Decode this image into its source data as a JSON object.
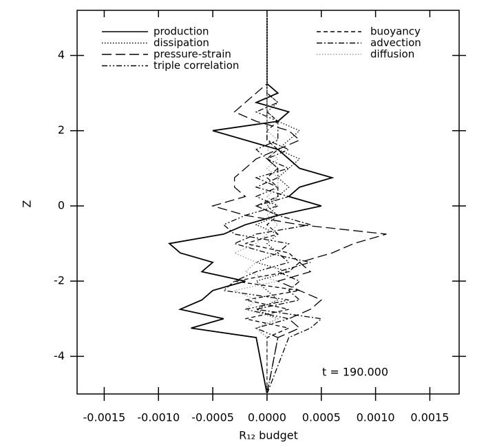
{
  "chart_data": {
    "type": "line",
    "x_label": "R₁₂ budget",
    "y_label": "Z",
    "annotation": "t = 190.000",
    "xlim": [
      -0.00175,
      0.00177
    ],
    "ylim": [
      -5,
      5.2
    ],
    "xticks": [
      -0.0015,
      {
        "value": -0.001,
        "label": "-0.0010"
      },
      -0.0005,
      {
        "value": 0,
        "label": "0.0000"
      },
      0.0005,
      {
        "value": 0.001,
        "label": "0.0010"
      },
      0.0015
    ],
    "yticks": [
      -4,
      -2,
      0,
      2,
      4
    ],
    "y": [
      -5,
      -3.5,
      -3.25,
      -3.0,
      -2.75,
      -2.5,
      -2.25,
      -2.0,
      -1.75,
      -1.5,
      -1.25,
      -1.0,
      -0.75,
      -0.5,
      -0.25,
      0,
      0.25,
      0.5,
      0.75,
      1.0,
      1.25,
      1.5,
      1.75,
      2.0,
      2.25,
      2.5,
      2.75,
      3.0,
      3.25,
      5
    ],
    "series": [
      {
        "name": "production",
        "color": "#000000",
        "style": "solid",
        "values": [
          0,
          -0.0001,
          -0.0007,
          -0.0004,
          -0.0008,
          -0.0006,
          -0.0005,
          -0.0002,
          -0.0006,
          -0.0005,
          -0.0008,
          -0.0009,
          -0.0004,
          -0.0002,
          0.0001,
          0.0005,
          0.0002,
          0.0003,
          0.0006,
          0.0003,
          0.0002,
          0.0001,
          -0.0002,
          -0.0005,
          0.0001,
          0.0002,
          -0.0001,
          0.0001,
          0,
          0
        ]
      },
      {
        "name": "dissipation",
        "color": "#000000",
        "style": "dotted",
        "values": [
          0,
          0,
          -0.0001,
          0.0001,
          -0.0001,
          0.0001,
          0,
          -0.0001,
          0.0002,
          -0.0001,
          0.0001,
          0,
          0.0001,
          -0.0001,
          0.0001,
          0,
          0.0001,
          0.0002,
          0.0001,
          0.0002,
          0.0003,
          0.0001,
          0.0002,
          0.0003,
          0.0001,
          0,
          0.0001,
          0,
          0,
          0
        ]
      },
      {
        "name": "pressure-strain",
        "color": "#000000",
        "style": "longdash",
        "values": [
          0,
          0.0001,
          0.0003,
          0.0002,
          0.0004,
          0.0005,
          0.0003,
          0.0001,
          0.0004,
          0.0003,
          0.0006,
          0.0008,
          0.0011,
          0.0003,
          -0.0002,
          -0.0005,
          -0.0002,
          -0.0003,
          -0.0003,
          -0.0002,
          -0.0001,
          0.0001,
          0.0003,
          0.0002,
          -0.0001,
          -0.0003,
          -0.0002,
          -0.0001,
          0,
          0
        ]
      },
      {
        "name": "triple correlation",
        "color": "#000000",
        "style": "dashdotdot",
        "values": [
          0,
          0.0001,
          -0.0001,
          0.0002,
          -0.0002,
          0.0002,
          -0.0004,
          -0.0003,
          -0.0001,
          0.0002,
          0.0001,
          0.0002,
          -0.0003,
          -0.0004,
          -0.0002,
          0.0001,
          -0.0001,
          0.0001,
          -0.0001,
          0.0002,
          0,
          -0.0001,
          0.0001,
          0.0001,
          0.0001,
          -0.0001,
          0.0001,
          0,
          0,
          0
        ]
      },
      {
        "name": "buoyancy",
        "color": "#000000",
        "style": "dashed",
        "values": [
          0,
          0,
          0.0002,
          -0.0002,
          0.0002,
          -0.0002,
          0.0003,
          -0.0003,
          0.0002,
          0.0003,
          0.0002,
          -0.0002,
          0.0001,
          0,
          0.0001,
          -0.0001,
          0.0001,
          0.0001,
          0,
          0.0001,
          0,
          0.0001,
          0,
          0,
          0.0001,
          0,
          0,
          0,
          0,
          0
        ]
      },
      {
        "name": "advection",
        "color": "#000000",
        "style": "dashdot",
        "values": [
          0,
          0.0002,
          0.0004,
          0.0005,
          -0.0001,
          0.0003,
          0.0002,
          0.0003,
          0.0001,
          0.0004,
          0,
          -0.0003,
          -0.0001,
          0.0004,
          0.0001,
          -0.0001,
          0.0002,
          -0.0001,
          0.0001,
          0.0001,
          0,
          0.0002,
          0,
          0,
          0,
          0,
          0,
          0,
          0,
          0
        ]
      },
      {
        "name": "diffusion",
        "color": "#999999",
        "style": "dotted",
        "values": [
          0,
          0,
          -0.0001,
          0.0001,
          -0.0002,
          -0.0001,
          -0.0003,
          0.0001,
          -0.0002,
          -0.0001,
          -0.0003,
          -0.0001,
          0,
          0.0001,
          0,
          0.0001,
          0,
          0.0001,
          0.0001,
          0,
          0.0001,
          0,
          0.0001,
          0,
          0,
          0,
          0,
          0,
          0,
          0
        ]
      }
    ]
  }
}
